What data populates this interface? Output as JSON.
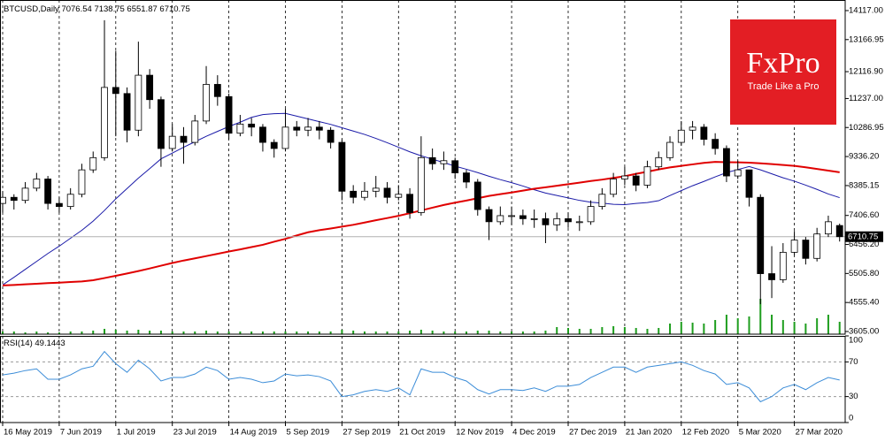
{
  "chart_data": [
    {
      "type": "candlestick",
      "title": "BTCUSD,Daily",
      "categories": [
        "16 May 2019",
        null,
        null,
        null,
        null,
        "7 Jun 2019",
        null,
        null,
        null,
        null,
        "1 Jul 2019",
        null,
        null,
        null,
        null,
        "23 Jul 2019",
        null,
        null,
        null,
        null,
        "14 Aug 2019",
        null,
        null,
        null,
        null,
        "5 Sep 2019",
        null,
        null,
        null,
        null,
        "27 Sep 2019",
        null,
        null,
        null,
        null,
        "21 Oct 2019",
        null,
        null,
        null,
        null,
        "12 Nov 2019",
        null,
        null,
        null,
        null,
        "4 Dec 2019",
        null,
        null,
        null,
        null,
        "27 Dec 2019",
        null,
        null,
        null,
        null,
        "21 Jan 2020",
        null,
        null,
        null,
        null,
        "12 Feb 2020",
        null,
        null,
        null,
        null,
        "5 Mar 2020",
        null,
        null,
        null,
        null,
        "27 Mar 2020",
        null,
        null,
        null,
        null
      ],
      "open": [
        7800,
        8000,
        7900,
        8300,
        8600,
        7800,
        7700,
        8100,
        8900,
        9300,
        11600,
        11400,
        10200,
        12000,
        11200,
        9600,
        10000,
        9800,
        10500,
        11700,
        11300,
        10100,
        10400,
        10300,
        9800,
        9600,
        10300,
        10200,
        10300,
        10200,
        9800,
        8200,
        8000,
        8200,
        8300,
        8000,
        8100,
        7500,
        9300,
        9100,
        9200,
        8800,
        8500,
        7600,
        7200,
        7400,
        7400,
        7300,
        7300,
        7100,
        7300,
        7200,
        7200,
        7700,
        8100,
        8600,
        8700,
        8400,
        9000,
        9300,
        9800,
        10200,
        10300,
        9900,
        9600,
        8700,
        8900,
        8000,
        5500,
        5300,
        6200,
        6600,
        6000,
        6800,
        7076.54
      ],
      "high": [
        8200,
        8100,
        8500,
        8800,
        8700,
        8000,
        8300,
        9100,
        9500,
        13800,
        12800,
        11600,
        13100,
        12200,
        11300,
        10400,
        10300,
        10700,
        12300,
        12000,
        11400,
        10700,
        10600,
        10400,
        9900,
        10900,
        10500,
        10600,
        10500,
        10300,
        9900,
        8400,
        8500,
        8700,
        8500,
        8400,
        8300,
        10000,
        9600,
        9500,
        9300,
        8900,
        8600,
        7700,
        7700,
        7700,
        7600,
        7600,
        7500,
        7500,
        7500,
        7400,
        7900,
        8300,
        8800,
        9000,
        8800,
        9200,
        9500,
        10000,
        10500,
        10500,
        10400,
        10100,
        9700,
        9200,
        8900,
        8100,
        6400,
        6500,
        6900,
        6700,
        7000,
        7400,
        7138.75
      ],
      "low": [
        7500,
        7600,
        7800,
        8200,
        7600,
        7500,
        7600,
        8000,
        8800,
        9200,
        10000,
        9800,
        10000,
        10900,
        9000,
        9500,
        9100,
        9700,
        10400,
        11000,
        9900,
        10000,
        10000,
        9500,
        9300,
        9500,
        10000,
        10000,
        9900,
        9600,
        7900,
        7800,
        7900,
        8000,
        7800,
        7900,
        7300,
        7400,
        8900,
        8900,
        8600,
        8300,
        7400,
        6600,
        7100,
        7100,
        7100,
        7000,
        6500,
        6900,
        7000,
        6900,
        7100,
        7600,
        8000,
        8400,
        8200,
        8300,
        8900,
        9200,
        9700,
        9900,
        9700,
        9400,
        8500,
        8600,
        7700,
        4500,
        4700,
        5200,
        6100,
        5800,
        5900,
        6700,
        6551.87
      ],
      "close": [
        8000,
        7900,
        8300,
        8600,
        7800,
        7700,
        8100,
        8900,
        9300,
        11600,
        11400,
        10200,
        12000,
        11200,
        9600,
        10000,
        9800,
        10500,
        11700,
        11300,
        10100,
        10400,
        10300,
        9800,
        9600,
        10300,
        10200,
        10300,
        10200,
        9800,
        8200,
        8000,
        8200,
        8300,
        8000,
        8100,
        7500,
        9300,
        9100,
        9200,
        8800,
        8500,
        7600,
        7200,
        7400,
        7400,
        7300,
        7300,
        7100,
        7300,
        7200,
        7200,
        7700,
        8100,
        8600,
        8700,
        8400,
        9000,
        9300,
        9800,
        10200,
        10300,
        9900,
        9600,
        8700,
        8900,
        8000,
        5500,
        5300,
        6200,
        6600,
        6000,
        6800,
        7200,
        6710.75
      ],
      "bull_color": "#ffffff",
      "bear_color": "#000000",
      "series": [
        {
          "color": "#1a1aa8",
          "values": [
            5130,
            5380,
            5640,
            5900,
            6160,
            6400,
            6660,
            6920,
            7220,
            7570,
            7950,
            8290,
            8630,
            8940,
            9260,
            9450,
            9640,
            9820,
            10000,
            10160,
            10320,
            10460,
            10620,
            10710,
            10740,
            10750,
            10660,
            10570,
            10480,
            10390,
            10280,
            10170,
            10060,
            9930,
            9790,
            9640,
            9490,
            9360,
            9250,
            9140,
            9020,
            8920,
            8810,
            8690,
            8580,
            8480,
            8370,
            8250,
            8140,
            8060,
            7980,
            7900,
            7840,
            7810,
            7770,
            7760,
            7800,
            7830,
            7890,
            8060,
            8220,
            8380,
            8520,
            8670,
            8810,
            8910,
            9010,
            8900,
            8770,
            8640,
            8530,
            8400,
            8260,
            8110,
            7990
          ]
        },
        {
          "color": "#e00000",
          "values": [
            5115,
            5130,
            5150,
            5170,
            5190,
            5205,
            5225,
            5245,
            5285,
            5355,
            5430,
            5505,
            5585,
            5670,
            5760,
            5850,
            5930,
            6000,
            6075,
            6150,
            6225,
            6295,
            6370,
            6445,
            6545,
            6640,
            6750,
            6855,
            6925,
            6980,
            7040,
            7100,
            7175,
            7250,
            7320,
            7395,
            7480,
            7570,
            7660,
            7750,
            7825,
            7895,
            7970,
            8045,
            8105,
            8160,
            8220,
            8280,
            8330,
            8380,
            8430,
            8480,
            8535,
            8580,
            8635,
            8690,
            8770,
            8840,
            8915,
            8980,
            9030,
            9080,
            9130,
            9160,
            9150,
            9145,
            9135,
            9115,
            9090,
            9060,
            9030,
            8985,
            8930,
            8875,
            8820
          ]
        }
      ],
      "volume": {
        "color": "#1f9e1f",
        "lim": [
          0,
          100
        ],
        "values": [
          3,
          3,
          2,
          3,
          2,
          2,
          3,
          3,
          4,
          6,
          5,
          4,
          5,
          4,
          4,
          3,
          3,
          3,
          4,
          3,
          3,
          3,
          3,
          3,
          3,
          3,
          3,
          3,
          3,
          3,
          5,
          4,
          3,
          3,
          3,
          3,
          4,
          5,
          4,
          3,
          3,
          3,
          4,
          4,
          3,
          3,
          3,
          3,
          4,
          8,
          7,
          6,
          6,
          8,
          9,
          8,
          7,
          6,
          7,
          12,
          14,
          13,
          12,
          16,
          22,
          18,
          20,
          40,
          22,
          16,
          14,
          12,
          18,
          22,
          14
        ]
      },
      "ylim": [
        3518,
        14464
      ],
      "yticks": [
        {
          "value": 14117,
          "label": "14117.00"
        },
        {
          "value": 13166.95,
          "label": "13166.95"
        },
        {
          "value": 12116.9,
          "label": "12116.90"
        },
        {
          "value": 11237,
          "label": "11237.00"
        },
        {
          "value": 10286.95,
          "label": "10286.95"
        },
        {
          "value": 9336.2,
          "label": "9336.20"
        },
        {
          "value": 8385.15,
          "label": "8385.15"
        },
        {
          "value": 7406.6,
          "label": "7406.60"
        },
        {
          "value": 6456.2,
          "label": "6456.20"
        },
        {
          "value": 5505.8,
          "label": "5505.80"
        },
        {
          "value": 4555.4,
          "label": "4555.40"
        },
        {
          "value": 3605,
          "label": "3605.00"
        }
      ],
      "grid": true
    },
    {
      "type": "line",
      "title": "RSI(14)",
      "color": "#3c8dd8",
      "values": [
        55,
        57,
        60,
        62,
        50,
        50,
        55,
        62,
        65,
        82,
        68,
        58,
        72,
        62,
        48,
        52,
        52,
        56,
        64,
        60,
        50,
        52,
        50,
        46,
        48,
        56,
        54,
        55,
        53,
        48,
        30,
        32,
        36,
        38,
        36,
        40,
        32,
        62,
        58,
        58,
        52,
        48,
        38,
        33,
        38,
        38,
        37,
        40,
        36,
        42,
        42,
        44,
        52,
        58,
        64,
        64,
        58,
        64,
        66,
        68,
        70,
        66,
        60,
        56,
        44,
        46,
        40,
        24,
        30,
        40,
        44,
        38,
        46,
        52,
        49.1443
      ],
      "ylim": [
        0,
        100
      ],
      "yticks": [
        0,
        30,
        70,
        100
      ]
    }
  ],
  "logo": {
    "brand": "FxPro",
    "tagline": "Trade Like a Pro"
  }
}
